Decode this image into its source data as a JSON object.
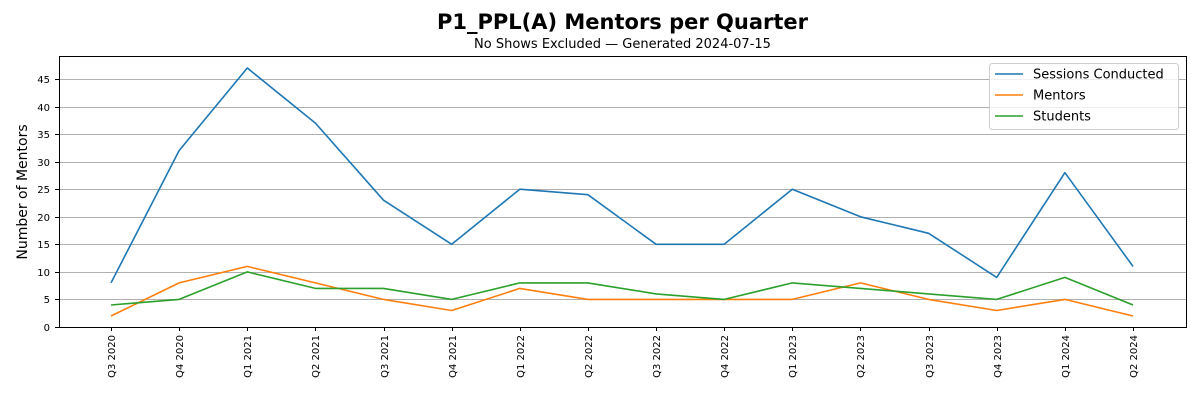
{
  "title": "P1_PPL(A) Mentors per Quarter",
  "subtitle": "No Shows Excluded — Generated 2024-07-15",
  "chart_data": {
    "type": "line",
    "title": "P1_PPL(A) Mentors per Quarter",
    "subtitle": "No Shows Excluded — Generated 2024-07-15",
    "xlabel": "",
    "ylabel": "Number of Mentors",
    "ylim": [
      0,
      49
    ],
    "yticks": [
      0,
      5,
      10,
      15,
      20,
      25,
      30,
      35,
      40,
      45
    ],
    "grid": "y",
    "legend_position": "upper right",
    "categories": [
      "Q3 2020",
      "Q4 2020",
      "Q1 2021",
      "Q2 2021",
      "Q3 2021",
      "Q4 2021",
      "Q1 2022",
      "Q2 2022",
      "Q3 2022",
      "Q4 2022",
      "Q1 2023",
      "Q2 2023",
      "Q3 2023",
      "Q4 2023",
      "Q1 2024",
      "Q2 2024"
    ],
    "series": [
      {
        "name": "Sessions Conducted",
        "color": "#1f77b4",
        "values": [
          8,
          32,
          47,
          37,
          23,
          15,
          25,
          24,
          15,
          15,
          25,
          20,
          17,
          9,
          28,
          11
        ]
      },
      {
        "name": "Mentors",
        "color": "#ff7f0e",
        "values": [
          2,
          8,
          11,
          8,
          5,
          3,
          7,
          5,
          5,
          5,
          5,
          8,
          5,
          3,
          5,
          2
        ]
      },
      {
        "name": "Students",
        "color": "#2ca02c",
        "values": [
          4,
          5,
          10,
          7,
          7,
          5,
          8,
          8,
          6,
          5,
          8,
          7,
          6,
          5,
          9,
          4
        ]
      }
    ]
  }
}
